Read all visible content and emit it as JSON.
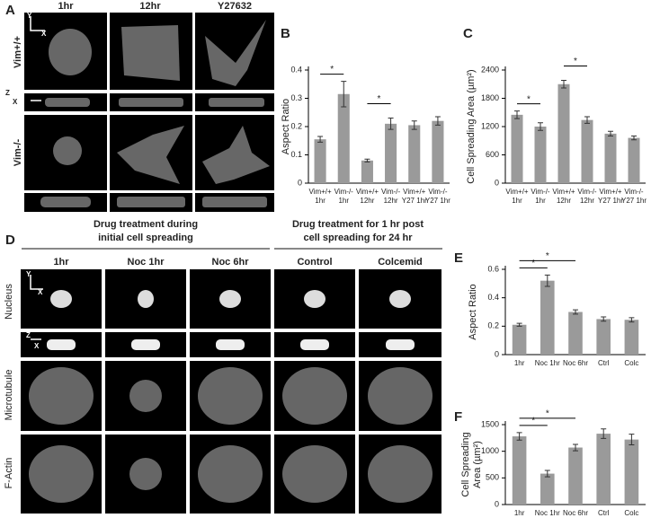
{
  "panel_a": {
    "label": "A",
    "columns": [
      "1hr",
      "12hr",
      "Y27632"
    ],
    "rows": [
      "Vim+/+",
      "Vim-/-"
    ],
    "axis_labels": [
      "Y",
      "X",
      "Z",
      "X"
    ]
  },
  "panel_d": {
    "label": "D",
    "groups": [
      [
        "Drug treatment during",
        "initial cell spreading"
      ],
      [
        "Drug treatment for 1 hr post",
        "cell spreading for 24 hr"
      ]
    ],
    "columns": [
      "1hr",
      "Noc 1hr",
      "Noc 6hr",
      "Control",
      "Colcemid"
    ],
    "rows": [
      "Nucleus",
      "Microtubule",
      "F-Actin"
    ],
    "axis_labels": [
      "Y",
      "X",
      "Z",
      "X"
    ]
  },
  "chart_data": [
    {
      "panel": "B",
      "type": "bar",
      "ylabel": [
        "Aspect Ratio"
      ],
      "categories": [
        [
          "Vim+/+",
          "1hr"
        ],
        [
          "Vim-/-",
          "1hr"
        ],
        [
          "Vim+/+",
          "12hr"
        ],
        [
          "Vim-/-",
          "12hr"
        ],
        [
          "Vim+/+",
          "Y27 1hr"
        ],
        [
          "Vim-/-",
          "Y27 1hr"
        ]
      ],
      "values": [
        0.155,
        0.315,
        0.08,
        0.21,
        0.205,
        0.22
      ],
      "errors": [
        0.01,
        0.045,
        0.005,
        0.02,
        0.015,
        0.015
      ],
      "color": "#9a9a9a",
      "ylim": [
        0,
        0.4
      ],
      "yticks": [
        0,
        0.1,
        0.2,
        0.3,
        0.4
      ],
      "annotations": [
        {
          "text": "*",
          "from": 0,
          "to": 1
        },
        {
          "text": "*",
          "from": 2,
          "to": 3
        }
      ]
    },
    {
      "panel": "C",
      "type": "bar",
      "ylabel": [
        "Cell Spreading Area (µm²)"
      ],
      "categories": [
        [
          "Vim+/+",
          "1hr"
        ],
        [
          "Vim-/-",
          "1hr"
        ],
        [
          "Vim+/+",
          "12hr"
        ],
        [
          "Vim-/-",
          "12hr"
        ],
        [
          "Vim+/+",
          "Y27 1hr"
        ],
        [
          "Vim-/-",
          "Y27 1hr"
        ]
      ],
      "values": [
        1450,
        1200,
        2100,
        1340,
        1050,
        960
      ],
      "errors": [
        80,
        80,
        80,
        70,
        50,
        40
      ],
      "color": "#9a9a9a",
      "ylim": [
        0,
        2400
      ],
      "yticks": [
        0,
        600,
        1200,
        1800,
        2400
      ],
      "annotations": [
        {
          "text": "*",
          "from": 0,
          "to": 1
        },
        {
          "text": "*",
          "from": 2,
          "to": 3
        }
      ]
    },
    {
      "panel": "E",
      "type": "bar",
      "ylabel": [
        "Aspect Ratio"
      ],
      "categories": [
        [
          "1hr"
        ],
        [
          "Noc 1hr"
        ],
        [
          "Noc 6hr"
        ],
        [
          "Ctrl"
        ],
        [
          "Colc"
        ]
      ],
      "values": [
        0.21,
        0.52,
        0.3,
        0.25,
        0.245
      ],
      "errors": [
        0.01,
        0.04,
        0.015,
        0.015,
        0.015
      ],
      "color": "#9a9a9a",
      "ylim": [
        0,
        0.6
      ],
      "yticks": [
        0,
        0.2,
        0.4,
        0.6
      ],
      "annotations": [
        {
          "text": "*",
          "from": 0,
          "to": 1
        },
        {
          "text": "*",
          "from": 0,
          "to": 2
        }
      ]
    },
    {
      "panel": "F",
      "type": "bar",
      "ylabel": [
        "Cell Spreading",
        "Area (µm²)"
      ],
      "categories": [
        [
          "1hr"
        ],
        [
          "Noc 1hr"
        ],
        [
          "Noc 6hr"
        ],
        [
          "Ctrl"
        ],
        [
          "Colc"
        ]
      ],
      "values": [
        1280,
        580,
        1070,
        1330,
        1220
      ],
      "errors": [
        70,
        60,
        60,
        90,
        100
      ],
      "color": "#9a9a9a",
      "ylim": [
        0,
        1500
      ],
      "yticks": [
        0,
        500,
        1000,
        1500
      ],
      "annotations": [
        {
          "text": "*",
          "from": 0,
          "to": 1
        },
        {
          "text": "*",
          "from": 0,
          "to": 2
        }
      ]
    }
  ]
}
